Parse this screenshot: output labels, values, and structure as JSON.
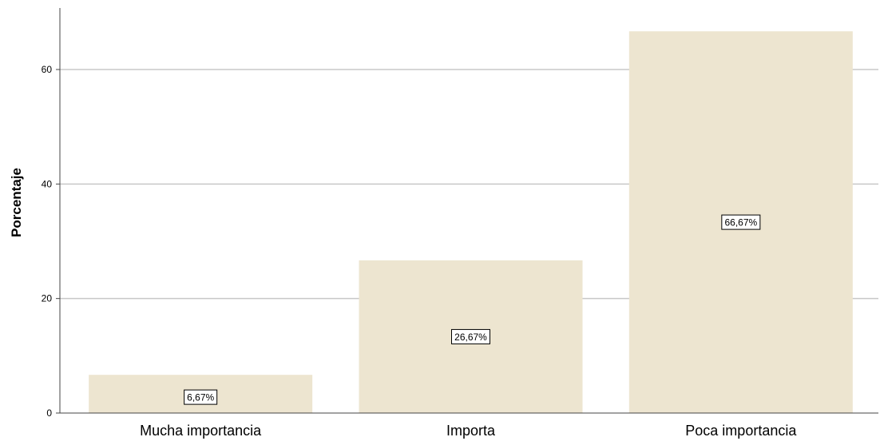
{
  "chart_data": {
    "type": "bar",
    "title": "",
    "xlabel": "",
    "ylabel": "Porcentaje",
    "categories": [
      "Mucha importancia",
      "Importa",
      "Poca importancia"
    ],
    "values": [
      6.67,
      26.67,
      66.67
    ],
    "data_labels": [
      "6,67%",
      "26,67%",
      "66,67%"
    ],
    "ylim": [
      0,
      70
    ],
    "yticks": [
      0,
      20,
      40,
      60
    ],
    "ytick_labels": [
      "0",
      "20",
      "40",
      "60"
    ],
    "grid": true,
    "legend": "none",
    "colors": {
      "bar_fill": "#ede5d0",
      "gridline": "#c8c8c8",
      "axis": "#444444",
      "label_box_border": "#000000",
      "label_box_fill": "#ffffff"
    }
  }
}
